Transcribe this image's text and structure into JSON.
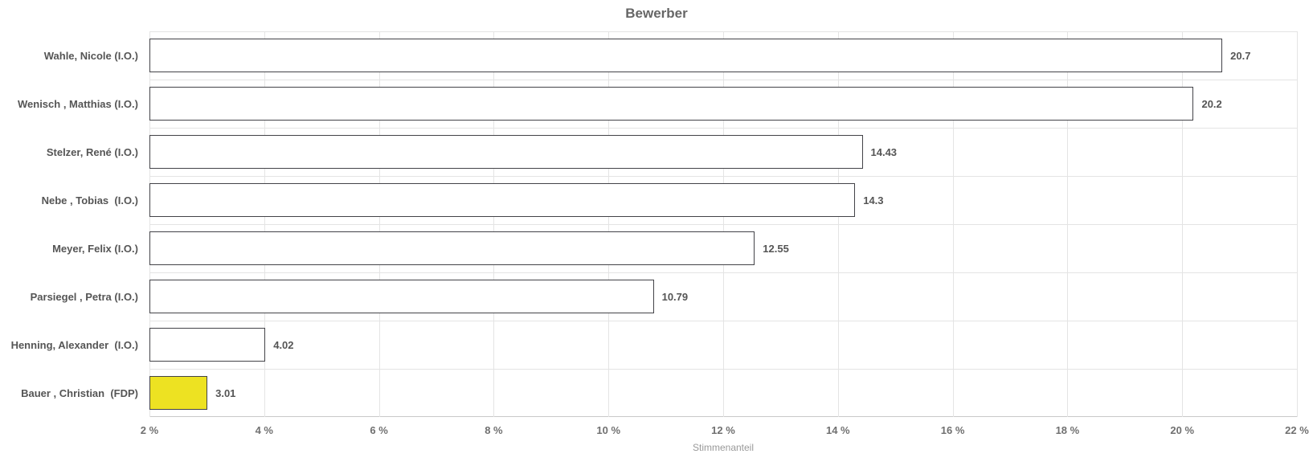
{
  "title": "Bewerber",
  "chart_data": {
    "type": "bar",
    "orientation": "horizontal",
    "title": "Bewerber",
    "xlabel": "Stimmenanteil",
    "categories": [
      "Wahle, Nicole (I.O.)",
      "Wenisch , Matthias (I.O.)",
      "Stelzer, René (I.O.)",
      "Nebe , Tobias  (I.O.)",
      "Meyer, Felix (I.O.)",
      "Parsiegel , Petra (I.O.)",
      "Henning, Alexander  (I.O.)",
      "Bauer , Christian  (FDP)"
    ],
    "values": [
      20.7,
      20.2,
      14.43,
      14.3,
      12.55,
      10.79,
      4.02,
      3.01
    ],
    "bar_colors": [
      "#ffffff",
      "#ffffff",
      "#ffffff",
      "#ffffff",
      "#ffffff",
      "#ffffff",
      "#ffffff",
      "#ede222"
    ],
    "bar_border_color": "#434348",
    "xlim": [
      2,
      22
    ],
    "x_tick_values": [
      2,
      4,
      6,
      8,
      10,
      12,
      14,
      16,
      18,
      20,
      22
    ],
    "x_ticks": [
      "2 %",
      "4 %",
      "6 %",
      "8 %",
      "10 %",
      "12 %",
      "14 %",
      "16 %",
      "18 %",
      "20 %",
      "22 %"
    ],
    "grid": true,
    "legend": "none",
    "value_label_color": "#555555",
    "category_label_color": "#555555"
  }
}
